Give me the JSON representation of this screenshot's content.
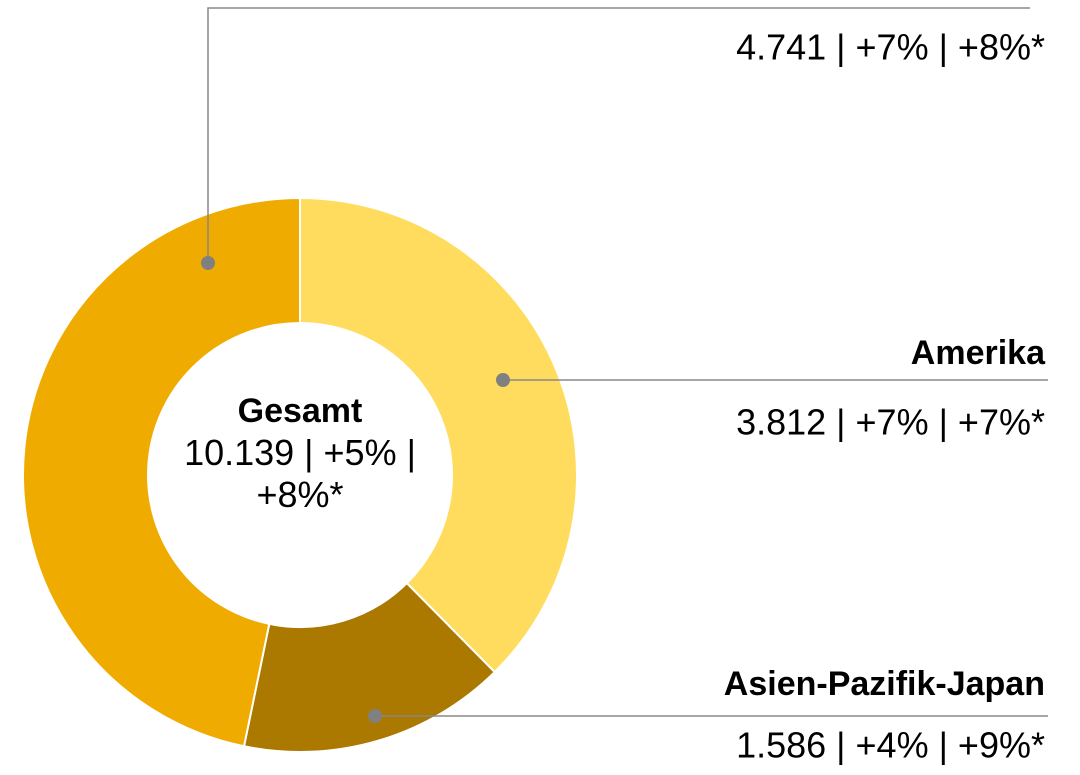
{
  "chart_data": {
    "type": "pie",
    "donut": true,
    "categories": [
      "Amerika",
      "Asien-Pazifik-Japan",
      null
    ],
    "values": [
      3812,
      1586,
      4741
    ],
    "value_labels": [
      "3.812 | +7% | +7%*",
      "1.586 | +4% | +9%*",
      "4.741 | +7% | +8%*"
    ],
    "colors": [
      "#ffdc5e",
      "#ab7800",
      "#efab00"
    ],
    "center_label": {
      "title": "Gesamt",
      "text": "10.139 | +5% | +8%*"
    }
  }
}
